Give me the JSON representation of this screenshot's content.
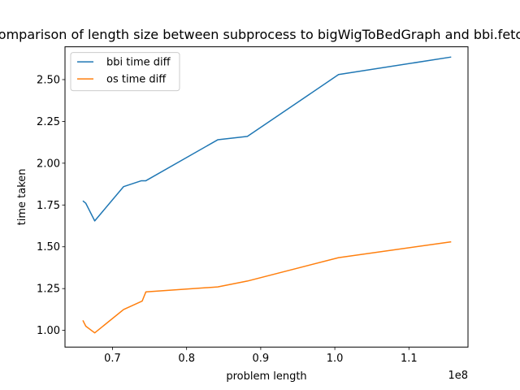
{
  "chart_data": {
    "type": "line",
    "title": "Comparison of length size between subprocess to bigWigToBedGraph and bbi.fetch",
    "xlabel": "problem length",
    "ylabel": "time taken",
    "x_offset_label": "1e8",
    "xlim": [
      0.6359,
      1.1797
    ],
    "ylim": [
      0.9,
      2.6962
    ],
    "x_ticks": [
      0.7,
      0.8,
      0.9,
      1.0,
      1.1
    ],
    "x_tick_labels": [
      "0.7",
      "0.8",
      "0.9",
      "1.0",
      "1.1"
    ],
    "y_ticks": [
      1.0,
      1.25,
      1.5,
      1.75,
      2.0,
      2.25,
      2.5
    ],
    "y_tick_labels": [
      "1.00",
      "1.25",
      "1.50",
      "1.75",
      "2.00",
      "2.25",
      "2.50"
    ],
    "grid": false,
    "legend_position": "top-left",
    "series": [
      {
        "name": "bbi time diff",
        "color": "#1f77b4",
        "x": [
          0.66,
          0.664,
          0.676,
          0.715,
          0.739,
          0.745,
          0.842,
          0.882,
          1.005,
          1.157
        ],
        "y": [
          1.775,
          1.76,
          1.655,
          1.86,
          1.895,
          1.895,
          2.14,
          2.16,
          2.53,
          2.635
        ]
      },
      {
        "name": "os time diff",
        "color": "#ff7f0e",
        "x": [
          0.66,
          0.664,
          0.676,
          0.715,
          0.74,
          0.745,
          0.842,
          0.882,
          1.005,
          1.157
        ],
        "y": [
          1.06,
          1.025,
          0.985,
          1.125,
          1.175,
          1.23,
          1.26,
          1.295,
          1.435,
          1.53
        ]
      }
    ]
  }
}
